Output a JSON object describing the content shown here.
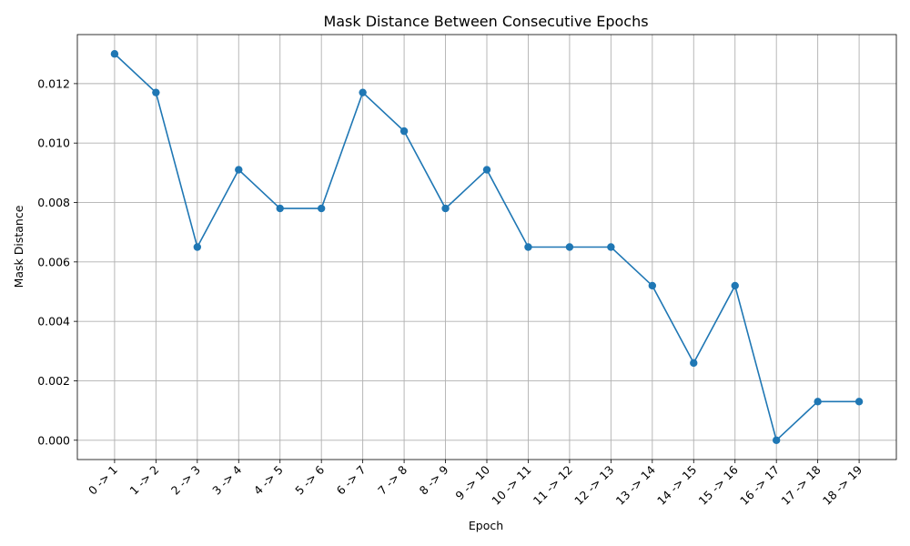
{
  "chart_data": {
    "type": "line",
    "title": "Mask Distance Between Consecutive Epochs",
    "xlabel": "Epoch",
    "ylabel": "Mask Distance",
    "categories": [
      "0 -> 1",
      "1 -> 2",
      "2 -> 3",
      "3 -> 4",
      "4 -> 5",
      "5 -> 6",
      "6 -> 7",
      "7 -> 8",
      "8 -> 9",
      "9 -> 10",
      "10 -> 11",
      "11 -> 12",
      "12 -> 13",
      "13 -> 14",
      "14 -> 15",
      "15 -> 16",
      "16 -> 17",
      "17 -> 18",
      "18 -> 19"
    ],
    "series": [
      {
        "values": [
          0.013,
          0.0117,
          0.0065,
          0.0091,
          0.0078,
          0.0078,
          0.0117,
          0.0104,
          0.0078,
          0.0091,
          0.0065,
          0.0065,
          0.0065,
          0.0052,
          0.0026,
          0.0052,
          0.0,
          0.0013,
          0.0013
        ],
        "color": "#1f77b4",
        "marker": "circle"
      }
    ],
    "yticks": [
      "0.000",
      "0.002",
      "0.004",
      "0.006",
      "0.008",
      "0.010",
      "0.012"
    ],
    "ylim": [
      -0.00065,
      0.01365
    ],
    "grid": true,
    "xtick_rotation": 45
  }
}
